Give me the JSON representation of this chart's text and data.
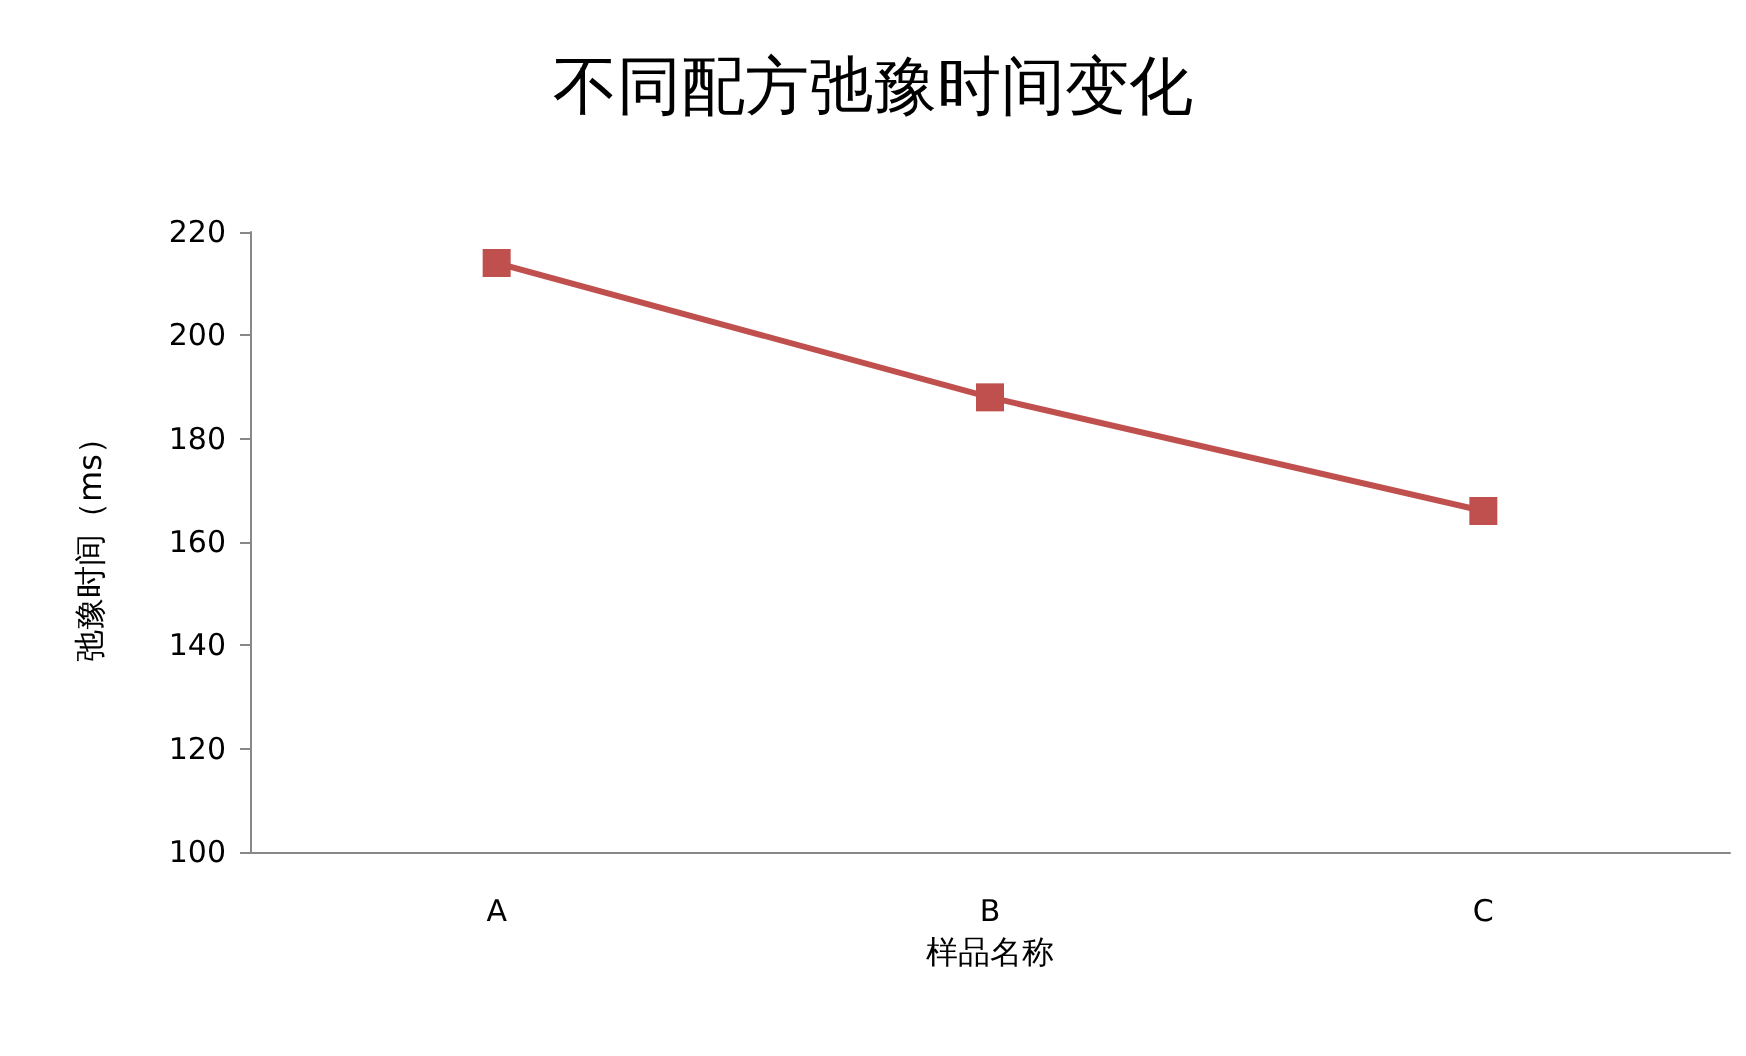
{
  "chart_data": {
    "type": "line",
    "title": "不同配方弛豫时间变化",
    "xlabel": "样品名称",
    "ylabel": "弛豫时间（ms）",
    "categories": [
      "A",
      "B",
      "C"
    ],
    "series": [
      {
        "color": "#c0504d",
        "values": [
          214,
          188,
          166
        ]
      }
    ],
    "ylim": [
      100,
      220
    ],
    "yticks": [
      100,
      120,
      140,
      160,
      180,
      200,
      220
    ],
    "grid": false,
    "marker": "square",
    "line_style": "solid"
  }
}
